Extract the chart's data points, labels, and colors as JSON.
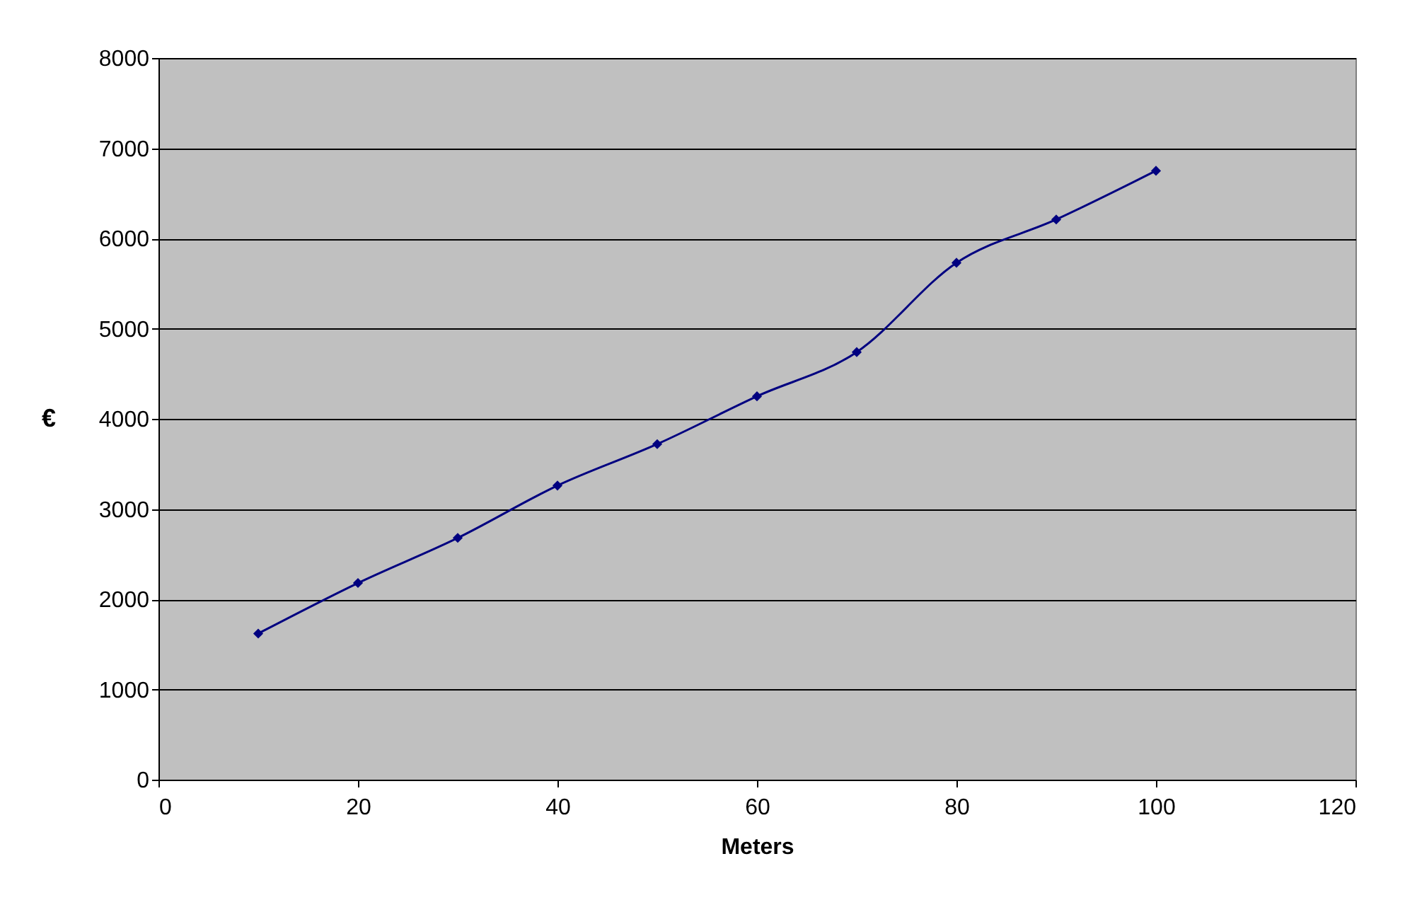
{
  "chart_data": {
    "type": "line",
    "xlabel": "Meters",
    "ylabel": "€",
    "x": [
      10,
      20,
      30,
      40,
      50,
      60,
      70,
      80,
      90,
      100
    ],
    "series": [
      {
        "color": "#000080",
        "values": [
          1620,
          2180,
          2680,
          3260,
          3720,
          4250,
          4740,
          5730,
          6210,
          6750
        ]
      }
    ],
    "xlim": [
      0,
      120
    ],
    "xticks": [
      0,
      20,
      40,
      60,
      80,
      100,
      120
    ],
    "ylim": [
      0,
      8000
    ],
    "yticks": [
      0,
      1000,
      2000,
      3000,
      4000,
      5000,
      6000,
      7000,
      8000
    ],
    "grid": "y",
    "marker": "diamond",
    "line_style": "solid"
  }
}
